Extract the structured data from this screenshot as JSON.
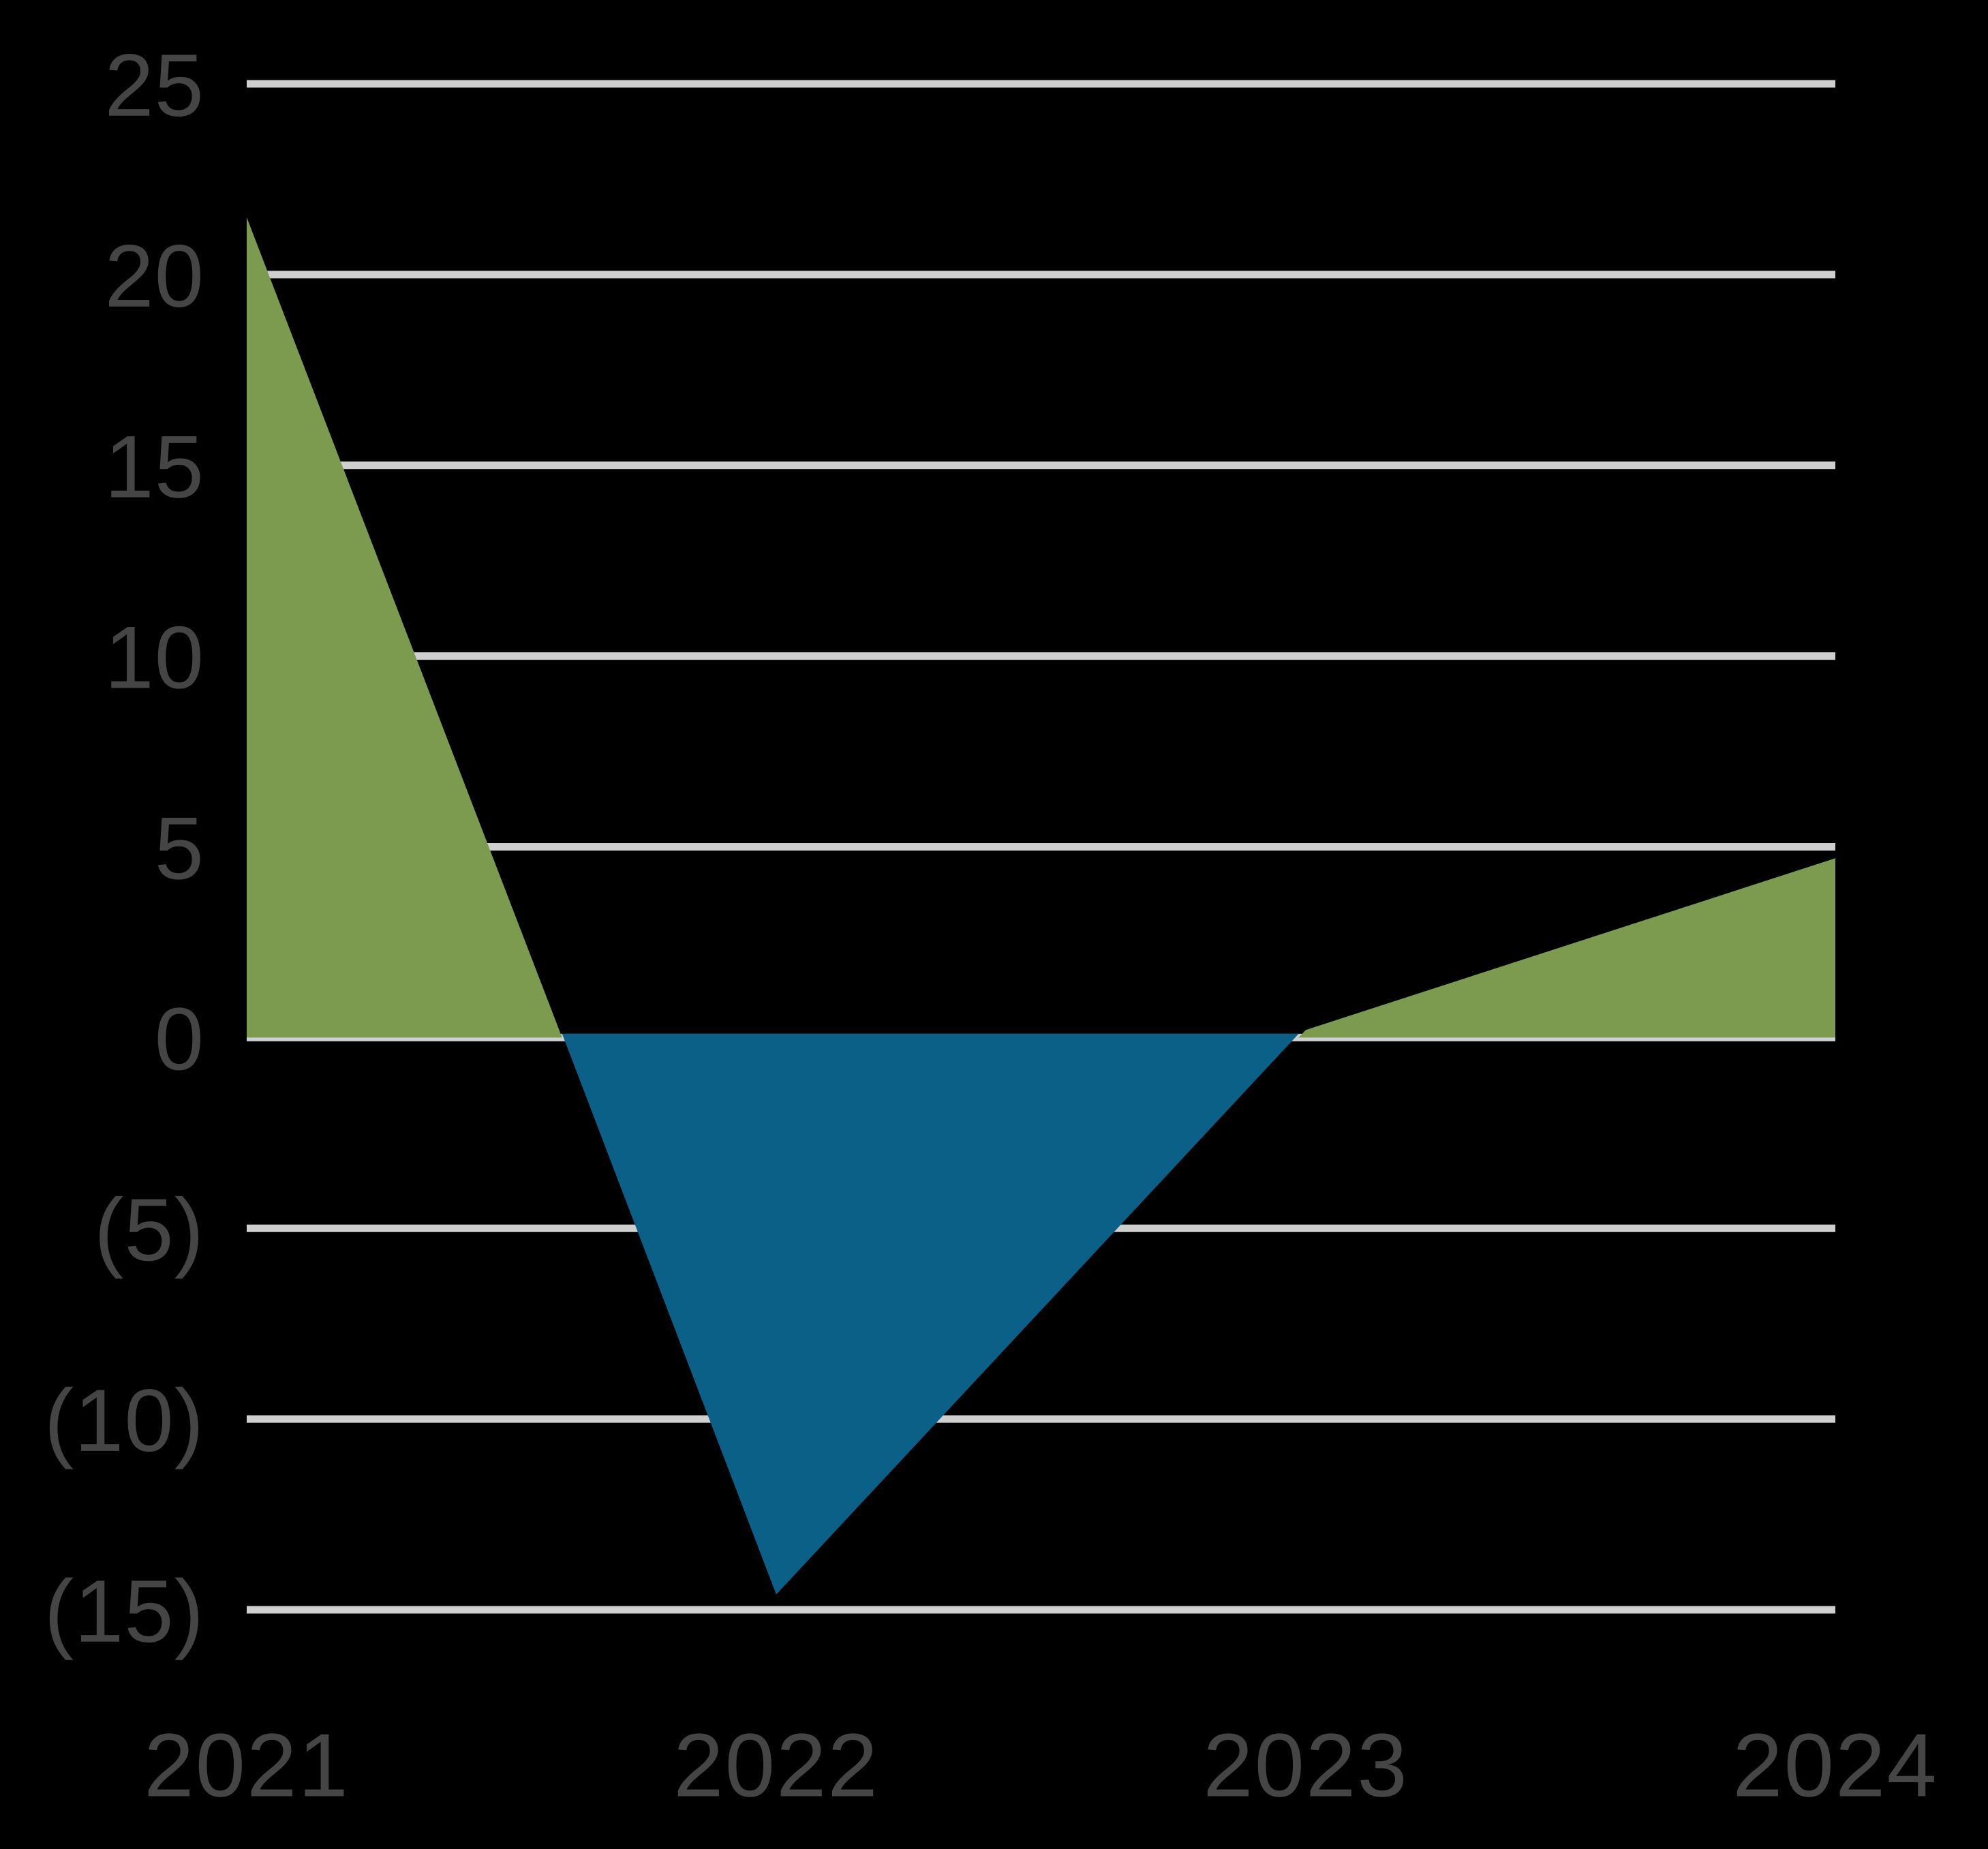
{
  "chart_data": {
    "type": "area",
    "categories": [
      "2021",
      "2022",
      "2023",
      "2024"
    ],
    "values": [
      21.5,
      -14.6,
      0.2,
      4.7
    ],
    "x_tick_labels": [
      "2021",
      "2022",
      "2023",
      "2024"
    ],
    "ylim": [
      -15,
      25
    ],
    "ytick_step": 5,
    "yticks": [
      25,
      20,
      15,
      10,
      5,
      0,
      -5,
      -10,
      -15
    ],
    "ytick_labels": [
      "25",
      "20",
      "15",
      "10",
      "5",
      "0",
      "(5)",
      "(10)",
      "(15)"
    ],
    "negative_number_format": "parentheses",
    "grid": true,
    "baseline": 0,
    "series_coloring": "invert-if-negative"
  },
  "colors": {
    "background": "#000000",
    "positive_area": "#7D9B4E",
    "negative_area": "#0A6086",
    "gridline": "#CFCFCF",
    "axis_label": "#454545"
  }
}
